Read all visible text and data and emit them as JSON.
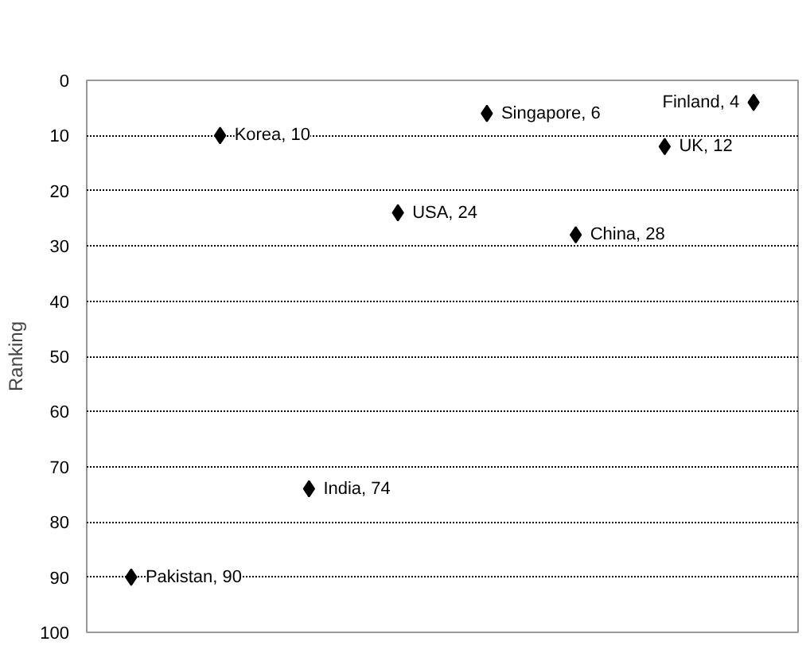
{
  "chart_data": {
    "type": "scatter",
    "ylabel": "Ranking",
    "categories": [
      null,
      null,
      null,
      null,
      null,
      null,
      null,
      null
    ],
    "values": [
      90,
      10,
      74,
      24,
      6,
      28,
      12,
      4
    ],
    "value_labels": [
      "Pakistan, 90",
      "Korea, 10",
      "India, 74",
      "USA, 24",
      "Singapore, 6",
      "China, 28",
      "UK, 12",
      "Finland, 4"
    ],
    "color": "#000000",
    "marker": "diamond",
    "ylim": [
      100,
      0
    ],
    "yticks": [
      0,
      10,
      20,
      30,
      40,
      50,
      60,
      70,
      80,
      90,
      100
    ],
    "grid": "y"
  }
}
